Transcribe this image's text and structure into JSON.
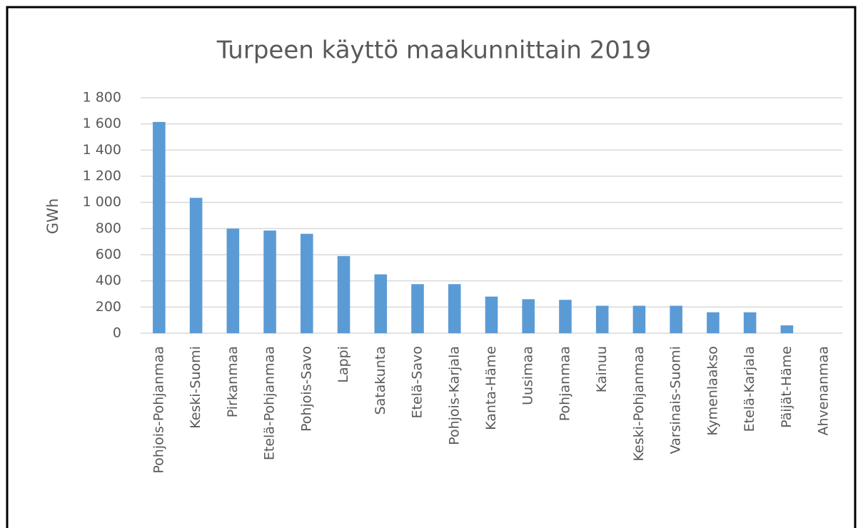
{
  "chart_data": {
    "type": "bar",
    "title": "Turpeen käyttö maakunnittain 2019",
    "y_label": "GWh",
    "categories": [
      "Pohjois-Pohjanmaa",
      "Keski-Suomi",
      "Pirkanmaa",
      "Etelä-Pohjanmaa",
      "Pohjois-Savo",
      "Lappi",
      "Satakunta",
      "Etelä-Savo",
      "Pohjois-Karjala",
      "Kanta-Häme",
      "Uusimaa",
      "Pohjanmaa",
      "Kainuu",
      "Keski-Pohjanmaa",
      "Varsinais-Suomi",
      "Kymenlaakso",
      "Etelä-Karjala",
      "Päijät-Häme",
      "Ahvenanmaa"
    ],
    "values": [
      1615,
      1035,
      800,
      785,
      760,
      590,
      450,
      375,
      375,
      280,
      260,
      255,
      210,
      210,
      210,
      160,
      160,
      60,
      0
    ],
    "color": "#5b9bd5",
    "ylim": [
      0,
      1800
    ],
    "yticks": [
      0,
      200,
      400,
      600,
      800,
      {
        "value": 1000,
        "label": "1 000"
      },
      {
        "value": 1200,
        "label": "1 200"
      },
      {
        "value": 1400,
        "label": "1 400"
      },
      {
        "value": 1600,
        "label": "1 600"
      },
      {
        "value": 1800,
        "label": "1 800"
      }
    ],
    "grid": true
  }
}
